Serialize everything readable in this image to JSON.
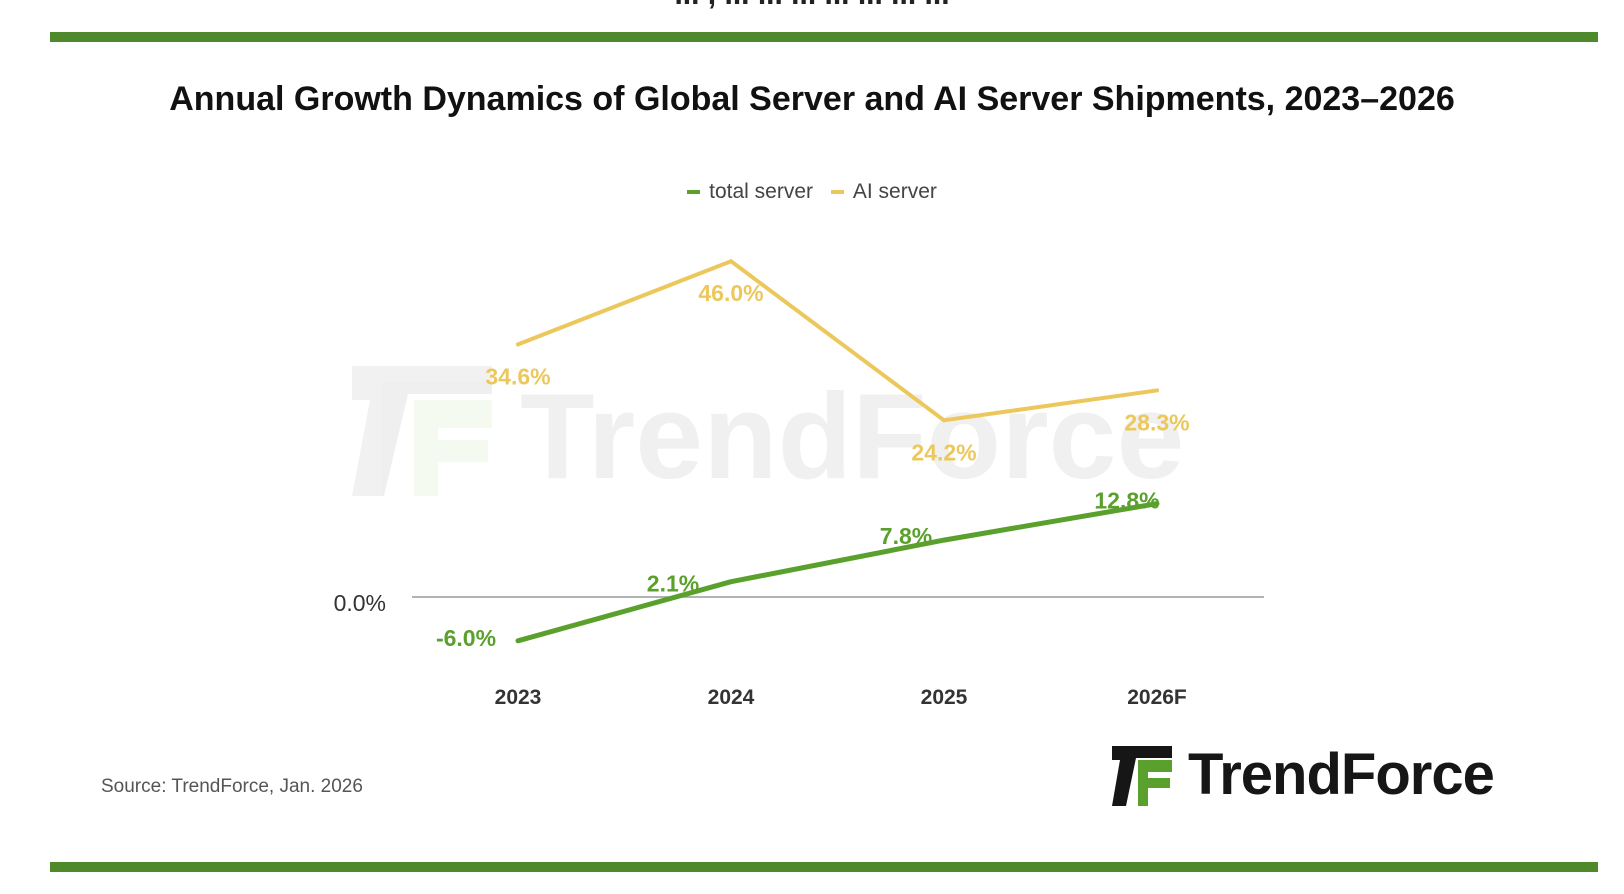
{
  "cut_off_text": "... , ... ... ... ... ... ... ...",
  "chart_data": {
    "type": "line",
    "title": "Annual Growth Dynamics of Global Server and AI Server Shipments, 2023–2026",
    "categories": [
      "2023",
      "2024",
      "2025",
      "2026F"
    ],
    "series": [
      {
        "name": "total server",
        "values": [
          -6.0,
          2.1,
          7.8,
          12.8
        ],
        "labels": [
          "-6.0%",
          "2.1%",
          "7.8%",
          "12.8%"
        ],
        "color": "#5aa02c"
      },
      {
        "name": "AI server",
        "values": [
          34.6,
          46.0,
          24.2,
          28.3
        ],
        "labels": [
          "34.6%",
          "46.0%",
          "24.2%",
          "28.3%"
        ],
        "color": "#ecc85c"
      }
    ],
    "baseline_label": "0.0%",
    "ylim": [
      -9,
      50
    ],
    "xlabel": "",
    "ylabel": "",
    "legend_position": "top-center"
  },
  "source": "Source: TrendForce, Jan. 2026",
  "watermark": "TrendForce",
  "logo_text": "TrendForce",
  "colors": {
    "rule": "#4e8a2c",
    "logo_green": "#5aa02c",
    "logo_dark": "#161616"
  }
}
